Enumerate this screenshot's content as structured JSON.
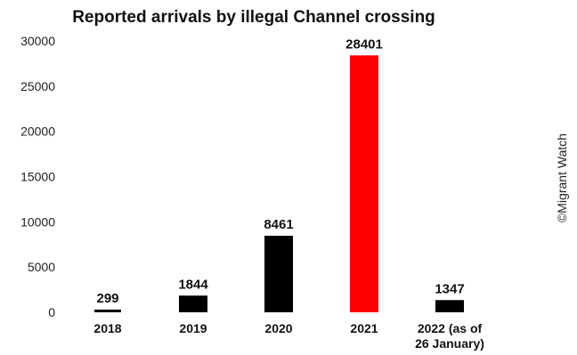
{
  "chart_data": {
    "type": "bar",
    "title": "Reported arrivals by illegal Channel crossing",
    "categories": [
      "2018",
      "2019",
      "2020",
      "2021",
      "2022 (as of|26 January)"
    ],
    "values": [
      299,
      1844,
      8461,
      28401,
      1347
    ],
    "data_labels": [
      "299",
      "1844",
      "8461",
      "28401",
      "1347"
    ],
    "bar_colors": [
      "#000000",
      "#000000",
      "#000000",
      "#ff0000",
      "#000000"
    ],
    "yticks": [
      "0",
      "5000",
      "10000",
      "15000",
      "20000",
      "25000",
      "30000"
    ],
    "ylim": [
      0,
      30000
    ],
    "grid": false,
    "xlabel": "",
    "ylabel": ""
  },
  "credit": "©Migrant Watch"
}
